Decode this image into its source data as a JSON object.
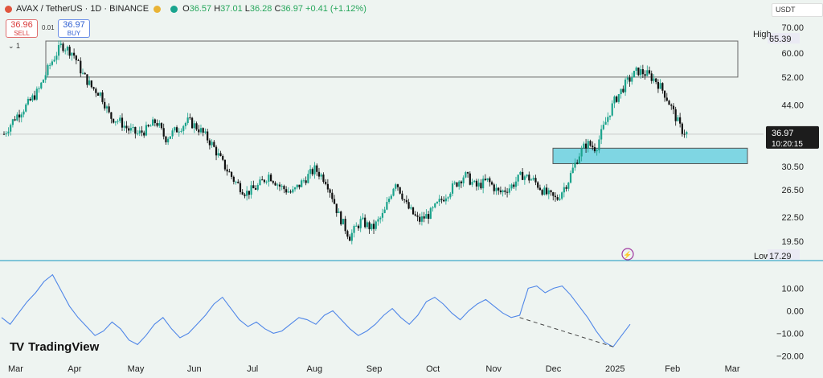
{
  "header": {
    "symbol": "AVAX / TetherUS · 1D · BINANCE",
    "open_label": "O",
    "open": "36.57",
    "high_label": "H",
    "high": "37.01",
    "low_label": "L",
    "low": "36.28",
    "close_label": "C",
    "close": "36.97",
    "change": "+0.41 (+1.12%)",
    "sell_price": "36.96",
    "sell_label": "SELL",
    "spread": "0.01",
    "buy_price": "36.97",
    "buy_label": "BUY",
    "indicators_count": "1",
    "currency": "USDT"
  },
  "brand": "TradingView",
  "chart_data": [
    {
      "type": "candlestick",
      "title": "AVAX / TetherUS · 1D · BINANCE",
      "x_labels": [
        "Mar",
        "Apr",
        "May",
        "Jun",
        "Jul",
        "Aug",
        "Sep",
        "Oct",
        "Nov",
        "Dec",
        "2025",
        "Feb",
        "Mar"
      ],
      "y_ticks": [
        "70.00",
        "60.00",
        "52.00",
        "44.00",
        "36.97",
        "30.50",
        "26.50",
        "22.50",
        "19.50"
      ],
      "high_label": "High",
      "high_value": "65.39",
      "low_label": "Low",
      "low_value": "17.29",
      "last_price": "36.97",
      "countdown": "10:20:15",
      "supply_zone": [
        52.0,
        64.5
      ],
      "demand_zone": [
        31.0,
        34.0
      ],
      "price_path": [
        [
          0,
          37
        ],
        [
          0.5,
          41
        ],
        [
          1.0,
          44
        ],
        [
          1.5,
          48
        ],
        [
          2.0,
          56
        ],
        [
          2.5,
          63
        ],
        [
          3.0,
          60
        ],
        [
          3.4,
          53
        ],
        [
          3.8,
          49
        ],
        [
          4.2,
          47
        ],
        [
          4.6,
          41
        ],
        [
          5.0,
          40
        ],
        [
          5.4,
          38
        ],
        [
          5.8,
          37
        ],
        [
          6.2,
          38
        ],
        [
          6.6,
          40
        ],
        [
          7.0,
          36
        ],
        [
          7.5,
          38
        ],
        [
          8.0,
          40
        ],
        [
          8.5,
          38
        ],
        [
          9.0,
          35
        ],
        [
          9.5,
          31
        ],
        [
          10.0,
          28
        ],
        [
          10.5,
          26
        ],
        [
          11.0,
          27
        ],
        [
          11.5,
          29
        ],
        [
          12.0,
          27
        ],
        [
          12.5,
          26
        ],
        [
          13.0,
          28
        ],
        [
          13.5,
          30
        ],
        [
          14.0,
          28
        ],
        [
          14.5,
          23
        ],
        [
          15.0,
          20
        ],
        [
          15.5,
          22
        ],
        [
          16.0,
          21
        ],
        [
          16.5,
          23
        ],
        [
          17.0,
          28
        ],
        [
          17.5,
          24
        ],
        [
          18.0,
          22
        ],
        [
          18.5,
          23
        ],
        [
          19.0,
          25
        ],
        [
          19.5,
          27
        ],
        [
          20.0,
          29
        ],
        [
          20.5,
          27
        ],
        [
          21.0,
          28
        ],
        [
          21.5,
          26
        ],
        [
          22.0,
          27
        ],
        [
          22.5,
          29
        ],
        [
          23.0,
          28
        ],
        [
          23.5,
          26
        ],
        [
          24.0,
          25
        ],
        [
          24.5,
          28
        ],
        [
          25.0,
          33
        ],
        [
          25.3,
          35
        ],
        [
          25.7,
          34
        ],
        [
          26.0,
          38
        ],
        [
          26.5,
          45
        ],
        [
          27.0,
          50
        ],
        [
          27.5,
          54
        ],
        [
          27.9,
          53
        ],
        [
          28.3,
          51
        ],
        [
          28.7,
          47
        ],
        [
          29.0,
          43
        ],
        [
          29.4,
          38
        ],
        [
          29.7,
          36.97
        ]
      ]
    },
    {
      "type": "line",
      "y_ticks": [
        "10.00",
        "0.00",
        "−10.00",
        "−20.00"
      ],
      "ylim": [
        -22,
        18
      ],
      "values": [
        -3,
        -6,
        -1,
        4,
        8,
        13,
        16,
        9,
        2,
        -3,
        -7,
        -11,
        -9,
        -5,
        -8,
        -13,
        -15,
        -11,
        -6,
        -3,
        -8,
        -12,
        -10,
        -6,
        -2,
        3,
        6,
        1,
        -4,
        -7,
        -5,
        -8,
        -10,
        -9,
        -6,
        -3,
        -4,
        -6,
        -2,
        0,
        -4,
        -8,
        -11,
        -9,
        -6,
        -2,
        1,
        -3,
        -6,
        -2,
        4,
        6,
        3,
        -1,
        -4,
        0,
        3,
        5,
        2,
        -1,
        -3,
        -2,
        10,
        11,
        8,
        10,
        11,
        7,
        2,
        -3,
        -9,
        -14,
        -16,
        -11,
        -6
      ],
      "divergence_line": [
        [
          61,
          -3
        ],
        [
          72,
          -16
        ]
      ]
    }
  ]
}
